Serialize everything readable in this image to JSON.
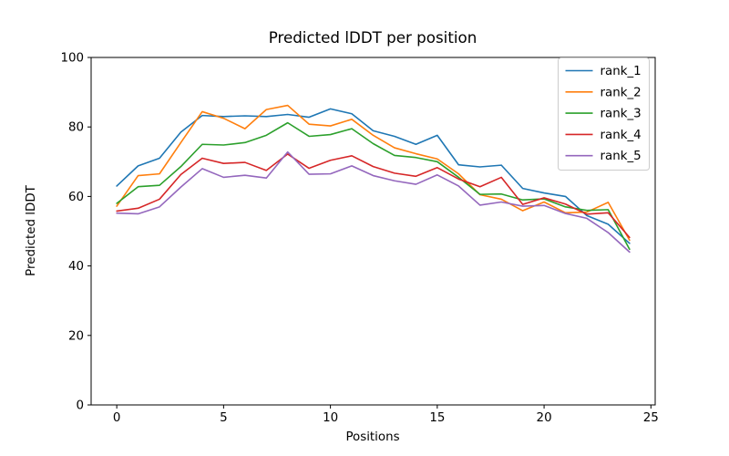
{
  "chart_data": {
    "type": "line",
    "title": "Predicted lDDT per position",
    "xlabel": "Positions",
    "ylabel": "Predicted lDDT",
    "xlim": [
      -1.2,
      25.2
    ],
    "ylim": [
      0,
      100
    ],
    "x_ticks": [
      0,
      5,
      10,
      15,
      20,
      25
    ],
    "y_ticks": [
      0,
      20,
      40,
      60,
      80,
      100
    ],
    "grid": false,
    "legend_position": "upper right",
    "background_color": "#ffffff",
    "spine_color": "#000000",
    "x": [
      0,
      1,
      2,
      3,
      4,
      5,
      6,
      7,
      8,
      9,
      10,
      11,
      12,
      13,
      14,
      15,
      16,
      17,
      18,
      19,
      20,
      21,
      22,
      23,
      24
    ],
    "series": [
      {
        "name": "rank_1",
        "color": "#1f77b4",
        "values": [
          63.0,
          68.8,
          71.0,
          78.5,
          83.3,
          83.0,
          83.2,
          83.0,
          83.6,
          82.8,
          85.2,
          83.8,
          78.9,
          77.3,
          75.0,
          77.6,
          69.1,
          68.5,
          69.0,
          62.3,
          61.0,
          60.0,
          54.5,
          52.0,
          46.5
        ]
      },
      {
        "name": "rank_2",
        "color": "#ff7f0e",
        "values": [
          57.2,
          66.0,
          66.5,
          75.5,
          84.4,
          82.5,
          79.5,
          85.0,
          86.2,
          80.8,
          80.3,
          82.2,
          77.6,
          74.0,
          72.3,
          70.8,
          66.5,
          60.5,
          59.2,
          55.9,
          58.4,
          55.3,
          55.5,
          58.3,
          47.4
        ]
      },
      {
        "name": "rank_3",
        "color": "#2ca02c",
        "values": [
          58.0,
          62.8,
          63.2,
          68.6,
          75.0,
          74.8,
          75.5,
          77.6,
          81.2,
          77.3,
          77.8,
          79.5,
          75.2,
          71.8,
          71.2,
          70.0,
          65.5,
          60.6,
          60.7,
          59.0,
          59.3,
          57.0,
          56.0,
          56.2,
          44.8
        ]
      },
      {
        "name": "rank_4",
        "color": "#d62728",
        "values": [
          55.8,
          56.6,
          59.2,
          66.3,
          71.0,
          69.5,
          69.8,
          67.5,
          72.2,
          68.1,
          70.4,
          71.7,
          68.6,
          66.7,
          65.8,
          68.3,
          65.0,
          62.8,
          65.5,
          57.7,
          59.6,
          57.8,
          54.9,
          55.3,
          48.2
        ]
      },
      {
        "name": "rank_5",
        "color": "#9467bd",
        "values": [
          55.2,
          55.0,
          57.0,
          62.7,
          68.0,
          65.5,
          66.1,
          65.3,
          72.8,
          66.4,
          66.5,
          68.8,
          66.0,
          64.5,
          63.5,
          66.2,
          63.0,
          57.5,
          58.4,
          57.2,
          57.4,
          55.1,
          53.7,
          49.6,
          44.0
        ]
      }
    ]
  }
}
